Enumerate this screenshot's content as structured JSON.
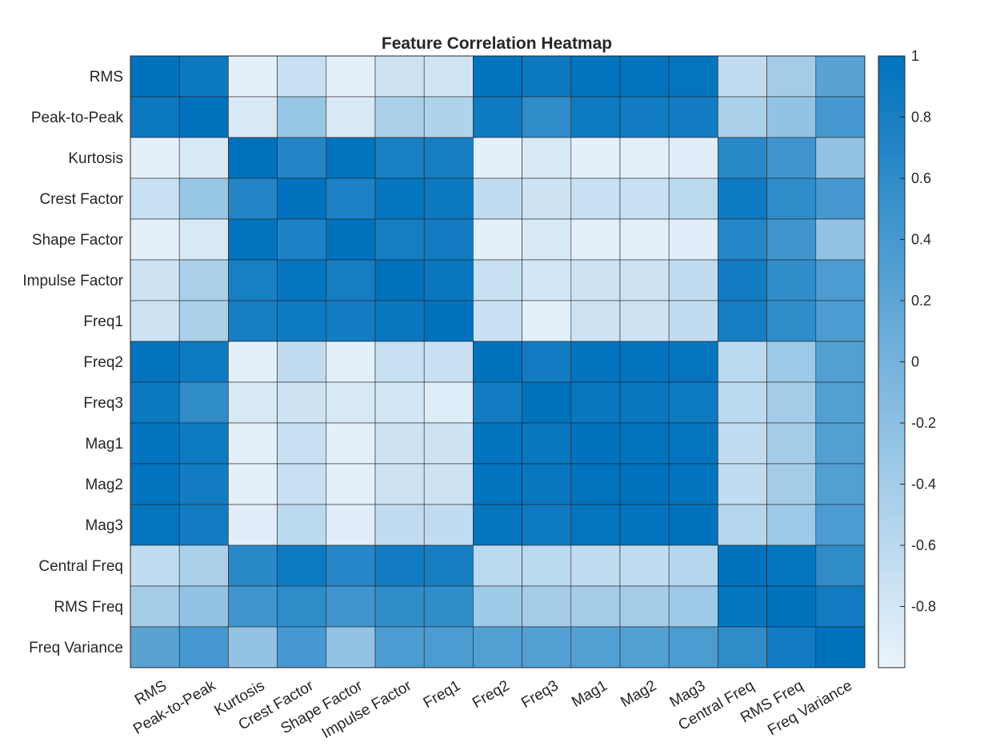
{
  "chart_data": {
    "type": "heatmap",
    "title": "Feature Correlation Heatmap",
    "labels": [
      "RMS",
      "Peak-to-Peak",
      "Kurtosis",
      "Crest Factor",
      "Shape Factor",
      "Impulse Factor",
      "Freq1",
      "Freq2",
      "Freq3",
      "Mag1",
      "Mag2",
      "Mag3",
      "Central Freq",
      "RMS Freq",
      "Freq Variance"
    ],
    "matrix": [
      [
        1.0,
        0.9,
        -0.95,
        -0.7,
        -0.95,
        -0.75,
        -0.78,
        0.98,
        0.9,
        0.98,
        0.98,
        0.97,
        -0.65,
        -0.4,
        0.25
      ],
      [
        0.9,
        1.0,
        -0.85,
        -0.3,
        -0.85,
        -0.45,
        -0.5,
        0.88,
        0.6,
        0.88,
        0.85,
        0.85,
        -0.45,
        -0.25,
        0.4
      ],
      [
        -0.95,
        -0.85,
        1.0,
        0.7,
        0.98,
        0.8,
        0.82,
        -0.95,
        -0.85,
        -0.95,
        -0.95,
        -0.92,
        0.65,
        0.45,
        -0.25
      ],
      [
        -0.7,
        -0.3,
        0.7,
        1.0,
        0.75,
        0.95,
        0.9,
        -0.65,
        -0.75,
        -0.7,
        -0.7,
        -0.6,
        0.88,
        0.6,
        0.4
      ],
      [
        -0.95,
        -0.85,
        0.98,
        0.75,
        1.0,
        0.82,
        0.85,
        -0.95,
        -0.85,
        -0.95,
        -0.95,
        -0.92,
        0.68,
        0.45,
        -0.25
      ],
      [
        -0.75,
        -0.45,
        0.8,
        0.95,
        0.82,
        1.0,
        0.93,
        -0.7,
        -0.8,
        -0.75,
        -0.75,
        -0.65,
        0.85,
        0.58,
        0.35
      ],
      [
        -0.75,
        -0.45,
        0.82,
        0.88,
        0.85,
        0.92,
        1.0,
        -0.7,
        -0.95,
        -0.75,
        -0.75,
        -0.65,
        0.82,
        0.58,
        0.35
      ],
      [
        0.98,
        0.88,
        -0.95,
        -0.65,
        -0.95,
        -0.7,
        -0.7,
        1.0,
        0.85,
        0.98,
        0.98,
        0.97,
        -0.6,
        -0.35,
        0.3
      ],
      [
        0.9,
        0.6,
        -0.85,
        -0.75,
        -0.85,
        -0.8,
        -0.9,
        0.85,
        1.0,
        0.92,
        0.92,
        0.88,
        -0.6,
        -0.4,
        0.3
      ],
      [
        0.98,
        0.88,
        -0.95,
        -0.7,
        -0.95,
        -0.75,
        -0.75,
        0.98,
        0.92,
        1.0,
        0.99,
        0.97,
        -0.65,
        -0.4,
        0.3
      ],
      [
        0.98,
        0.85,
        -0.95,
        -0.7,
        -0.95,
        -0.75,
        -0.75,
        0.98,
        0.92,
        0.99,
        1.0,
        0.98,
        -0.65,
        -0.4,
        0.3
      ],
      [
        0.97,
        0.85,
        -0.92,
        -0.6,
        -0.92,
        -0.65,
        -0.65,
        0.97,
        0.88,
        0.97,
        0.98,
        1.0,
        -0.55,
        -0.35,
        0.35
      ],
      [
        -0.65,
        -0.45,
        0.65,
        0.88,
        0.68,
        0.85,
        0.82,
        -0.6,
        -0.6,
        -0.65,
        -0.65,
        -0.55,
        1.0,
        0.95,
        0.6
      ],
      [
        -0.4,
        -0.25,
        0.45,
        0.6,
        0.45,
        0.58,
        0.58,
        -0.35,
        -0.4,
        -0.4,
        -0.4,
        -0.35,
        0.95,
        1.0,
        0.85
      ],
      [
        0.25,
        0.4,
        -0.25,
        0.4,
        -0.25,
        0.35,
        0.35,
        0.3,
        0.3,
        0.3,
        0.3,
        0.35,
        0.6,
        0.85,
        1.0
      ]
    ],
    "colorbar": {
      "range": [
        -1,
        1
      ],
      "ticks": [
        1,
        0.8,
        0.6,
        0.4,
        0.2,
        0,
        -0.2,
        -0.4,
        -0.6,
        -0.8
      ],
      "tick_labels": [
        "1",
        "0.8",
        "0.6",
        "0.4",
        "0.2",
        "0",
        "-0.2",
        "-0.4",
        "-0.6",
        "-0.8"
      ],
      "color_low": "#EAF3FB",
      "color_high": "#0072BD"
    },
    "grid": true,
    "colorbar_position": "right"
  }
}
